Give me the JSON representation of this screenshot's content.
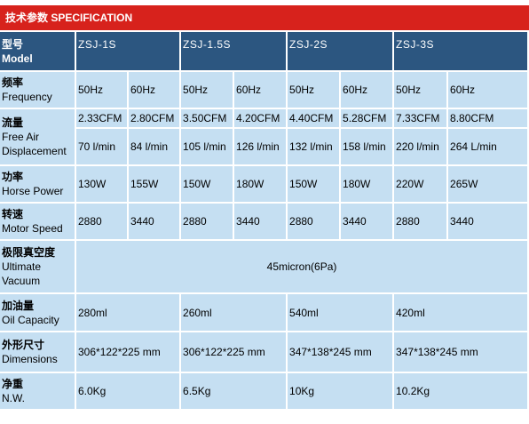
{
  "banner": {
    "title": "技术参数 SPECIFICATION"
  },
  "labels": {
    "model_zh": "型号",
    "model_en": "Model",
    "frequency_zh": "频率",
    "frequency_en": "Frequency",
    "flow_zh": "流量",
    "flow_en1": "Free Air",
    "flow_en2": "Displacement",
    "power_zh": "功率",
    "power_en": "Horse Power",
    "speed_zh": "转速",
    "speed_en": "Motor Speed",
    "vacuum_zh": "极限真空度",
    "vacuum_en1": "Ultimate",
    "vacuum_en2": "Vacuum",
    "oil_zh": "加油量",
    "oil_en": "Oil Capacity",
    "dim_zh": "外形尺寸",
    "dim_en": "Dimensions",
    "weight_zh": "净重",
    "weight_en": "N.W."
  },
  "models": [
    "ZSJ-1S",
    "ZSJ-1.5S",
    "ZSJ-2S",
    "ZSJ-3S"
  ],
  "frequency": [
    "50Hz",
    "60Hz",
    "50Hz",
    "60Hz",
    "50Hz",
    "60Hz",
    "50Hz",
    "60Hz"
  ],
  "flow_cfm": [
    "2.33CFM",
    "2.80CFM",
    "3.50CFM",
    "4.20CFM",
    "4.40CFM",
    "5.28CFM",
    "7.33CFM",
    "8.80CFM"
  ],
  "flow_lmin": [
    "70 l/min",
    "84 l/min",
    "105 l/min",
    "126 l/min",
    "132 l/min",
    "158 l/min",
    "220 l/min",
    "264 L/min"
  ],
  "power": [
    "130W",
    "155W",
    "150W",
    "180W",
    "150W",
    "180W",
    "220W",
    "265W"
  ],
  "speed": [
    "2880",
    "3440",
    "2880",
    "3440",
    "2880",
    "3440",
    "2880",
    "3440"
  ],
  "ultimate_vacuum": "45micron(6Pa)",
  "oil_capacity": [
    "280ml",
    "260ml",
    "540ml",
    "420ml"
  ],
  "dimensions": [
    "306*122*225 mm",
    "306*122*225 mm",
    "347*138*245 mm",
    "347*138*245 mm"
  ],
  "net_weight": [
    "6.0Kg",
    "6.5Kg",
    "10Kg",
    "10.2Kg"
  ]
}
